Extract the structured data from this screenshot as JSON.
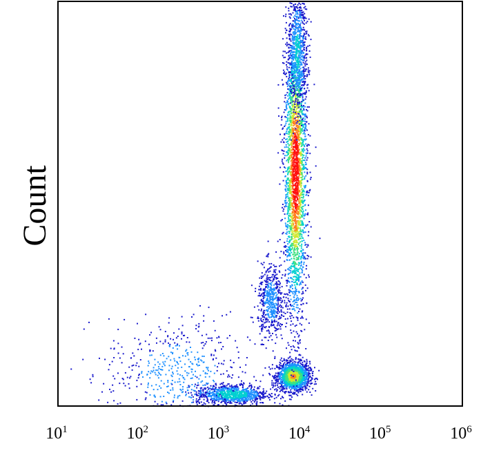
{
  "chart_data": {
    "type": "scatter",
    "title": "",
    "xlabel": "",
    "ylabel": "Count",
    "x_scale": "log",
    "xlim": [
      10,
      1000000
    ],
    "x_ticks": [
      {
        "base": "10",
        "exp": "1",
        "value": 10
      },
      {
        "base": "10",
        "exp": "2",
        "value": 100
      },
      {
        "base": "10",
        "exp": "3",
        "value": 1000
      },
      {
        "base": "10",
        "exp": "4",
        "value": 10000
      },
      {
        "base": "10",
        "exp": "5",
        "value": 100000
      },
      {
        "base": "10",
        "exp": "6",
        "value": 1000000
      }
    ],
    "y_ticks": [],
    "ylim": [
      0,
      1
    ],
    "grid": false,
    "legend": "none",
    "density_colormap": [
      "#1a1acc",
      "#1e90ff",
      "#00d0d0",
      "#40e080",
      "#d0e830",
      "#ff8020",
      "#ff1010"
    ],
    "populations": [
      {
        "x_center": 8000,
        "y_center": 0.075,
        "x_spread_decades": 0.1,
        "y_spread": 0.018,
        "weight": 0.18
      },
      {
        "x_center": 1400,
        "y_center": 0.03,
        "x_spread_decades": 0.22,
        "y_spread": 0.012,
        "weight": 0.1
      },
      {
        "x_center": 4200,
        "y_center": 0.26,
        "x_spread_decades": 0.08,
        "y_spread": 0.045,
        "weight": 0.06
      },
      {
        "x_center": 8500,
        "y_center": 0.58,
        "x_spread_decades": 0.07,
        "y_spread": 0.18,
        "weight": 0.3
      },
      {
        "x_center": 9000,
        "y_center": 0.88,
        "x_spread_decades": 0.06,
        "y_spread": 0.08,
        "weight": 0.08
      },
      {
        "x_center": 300,
        "y_center": 0.08,
        "x_spread_decades": 0.45,
        "y_spread": 0.07,
        "weight": 0.06
      }
    ]
  }
}
